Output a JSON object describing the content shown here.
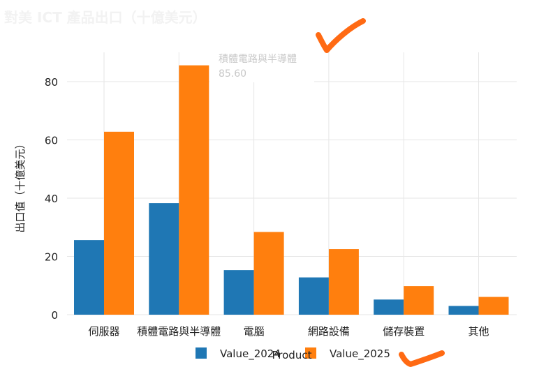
{
  "chart_data": {
    "type": "bar",
    "title": "對美 ICT 產品出口（十億美元）",
    "xlabel": "Product",
    "ylabel": "出口值（十億美元）",
    "categories": [
      "伺服器",
      "積體電路與半導體",
      "電腦",
      "網路設備",
      "儲存裝置",
      "其他"
    ],
    "series": [
      {
        "name": "Value_2024",
        "values": [
          25.6,
          38.3,
          15.3,
          12.8,
          5.2,
          3.0
        ]
      },
      {
        "name": "Value_2025",
        "values": [
          62.8,
          85.6,
          28.4,
          22.5,
          9.8,
          6.1
        ]
      }
    ],
    "ylim": [
      0,
      90
    ],
    "yticks": [
      "0",
      "20",
      "40",
      "60",
      "80"
    ],
    "grid": true,
    "legend": "bottom",
    "colors": {
      "Value_2024": "#1f77b4",
      "Value_2025": "#ff7f0e",
      "annotation": "#ff6a13"
    },
    "tooltip": {
      "category": "積體電路與半導體",
      "value": "85.60"
    }
  }
}
